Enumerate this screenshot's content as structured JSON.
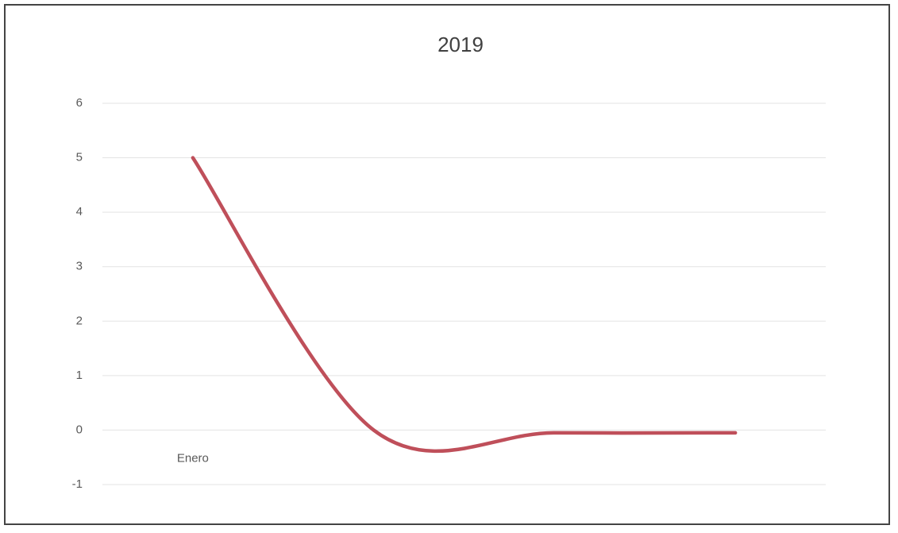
{
  "chart_data": {
    "type": "line",
    "title": "2019",
    "categories": [
      "Enero",
      null,
      null,
      null
    ],
    "series": [
      {
        "name": "2019",
        "color": "#bf4f5a",
        "values": [
          5,
          0,
          -0.05,
          -0.05
        ]
      }
    ],
    "ylim": [
      -1,
      6
    ],
    "yticks": [
      -1,
      0,
      1,
      2,
      3,
      4,
      5,
      6
    ],
    "grid": true,
    "smooth": true
  }
}
